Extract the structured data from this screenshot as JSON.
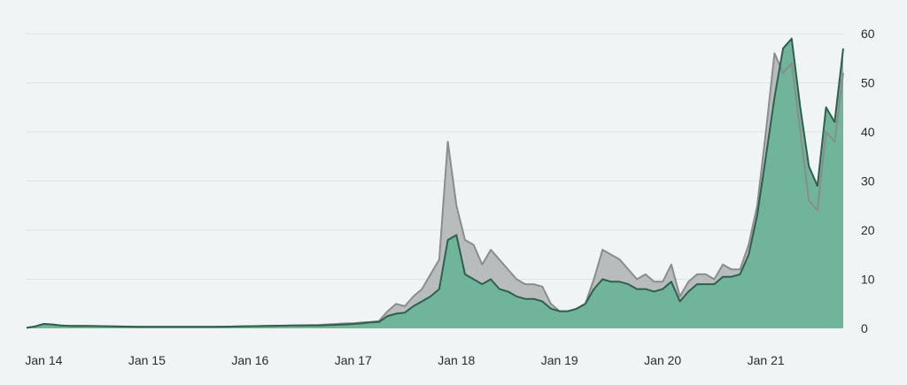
{
  "chart_data": {
    "type": "area",
    "title": "",
    "xlabel": "",
    "ylabel": "",
    "ylim": [
      0,
      60
    ],
    "y_ticks": [
      "0",
      "10",
      "20",
      "30",
      "40",
      "50",
      "60"
    ],
    "x_ticks": [
      "Jan 14",
      "Jan 15",
      "Jan 16",
      "Jan 17",
      "Jan 18",
      "Jan 19",
      "Jan 20",
      "Jan 21"
    ],
    "x_range": [
      "2013-11",
      "2021-10"
    ],
    "grid": true,
    "legend": "none",
    "colors": {
      "background": "#f1f4f5",
      "grid": "#dde3e6",
      "area_green": "#6fb49b",
      "line_green": "#2f5f4d",
      "area_gray": "#b9bcbd",
      "line_gray": "#8a8c8d"
    },
    "series": [
      {
        "x": [
          "2013-11",
          "2013-12",
          "2014-01",
          "2014-02",
          "2014-03",
          "2014-04",
          "2014-06",
          "2014-09",
          "2014-12",
          "2015-03",
          "2015-06",
          "2015-09",
          "2015-12",
          "2016-03",
          "2016-06",
          "2016-09",
          "2016-12",
          "2017-01",
          "2017-02",
          "2017-03",
          "2017-04",
          "2017-05",
          "2017-06",
          "2017-07",
          "2017-08",
          "2017-09",
          "2017-10",
          "2017-11",
          "2017-12",
          "2018-01",
          "2018-02",
          "2018-03",
          "2018-04",
          "2018-05",
          "2018-06",
          "2018-07",
          "2018-08",
          "2018-09",
          "2018-10",
          "2018-11",
          "2018-12",
          "2019-01",
          "2019-02",
          "2019-03",
          "2019-04",
          "2019-05",
          "2019-06",
          "2019-07",
          "2019-08",
          "2019-09",
          "2019-10",
          "2019-11",
          "2019-12",
          "2020-01",
          "2020-02",
          "2020-03",
          "2020-04",
          "2020-05",
          "2020-06",
          "2020-07",
          "2020-08",
          "2020-09",
          "2020-10",
          "2020-11",
          "2020-12",
          "2021-01",
          "2021-02",
          "2021-03",
          "2021-04",
          "2021-05",
          "2021-06",
          "2021-07",
          "2021-08",
          "2021-09",
          "2021-10"
        ],
        "values": [
          0.1,
          0.4,
          0.9,
          0.8,
          0.6,
          0.5,
          0.5,
          0.4,
          0.3,
          0.3,
          0.3,
          0.3,
          0.4,
          0.5,
          0.6,
          0.6,
          0.8,
          0.9,
          1.0,
          1.2,
          1.3,
          2.5,
          3.0,
          3.2,
          4.5,
          5.5,
          6.5,
          8.0,
          18.0,
          19.0,
          11.0,
          10.0,
          9.0,
          10.0,
          8.0,
          7.5,
          6.5,
          6.0,
          6.0,
          5.5,
          4.0,
          3.5,
          3.5,
          4.0,
          5.0,
          8.0,
          10.0,
          9.5,
          9.5,
          9.0,
          8.0,
          8.0,
          7.5,
          8.0,
          9.5,
          5.5,
          7.5,
          9.0,
          9.0,
          9.0,
          10.5,
          10.5,
          11.0,
          15.0,
          23.0,
          35.0,
          47.0,
          57.0,
          59.0,
          45.0,
          33.0,
          29.0,
          45.0,
          42.0,
          57.0
        ]
      },
      {
        "x": [
          "2013-11",
          "2013-12",
          "2014-01",
          "2014-02",
          "2014-03",
          "2014-04",
          "2014-06",
          "2014-09",
          "2014-12",
          "2015-03",
          "2015-06",
          "2015-09",
          "2015-12",
          "2016-03",
          "2016-06",
          "2016-09",
          "2016-12",
          "2017-01",
          "2017-02",
          "2017-03",
          "2017-04",
          "2017-05",
          "2017-06",
          "2017-07",
          "2017-08",
          "2017-09",
          "2017-10",
          "2017-11",
          "2017-12",
          "2018-01",
          "2018-02",
          "2018-03",
          "2018-04",
          "2018-05",
          "2018-06",
          "2018-07",
          "2018-08",
          "2018-09",
          "2018-10",
          "2018-11",
          "2018-12",
          "2019-01",
          "2019-02",
          "2019-03",
          "2019-04",
          "2019-05",
          "2019-06",
          "2019-07",
          "2019-08",
          "2019-09",
          "2019-10",
          "2019-11",
          "2019-12",
          "2020-01",
          "2020-02",
          "2020-03",
          "2020-04",
          "2020-05",
          "2020-06",
          "2020-07",
          "2020-08",
          "2020-09",
          "2020-10",
          "2020-11",
          "2020-12",
          "2021-01",
          "2021-02",
          "2021-03",
          "2021-04",
          "2021-05",
          "2021-06",
          "2021-07",
          "2021-08",
          "2021-09",
          "2021-10"
        ],
        "values": [
          0.1,
          0.4,
          0.9,
          0.8,
          0.6,
          0.5,
          0.5,
          0.4,
          0.3,
          0.3,
          0.3,
          0.3,
          0.4,
          0.5,
          0.6,
          0.7,
          1.0,
          1.0,
          1.2,
          1.3,
          1.5,
          3.5,
          5.0,
          4.5,
          6.5,
          8.0,
          11.0,
          14.0,
          38.0,
          25.0,
          18.0,
          17.0,
          13.0,
          16.0,
          14.0,
          12.0,
          10.0,
          9.0,
          9.0,
          8.5,
          5.0,
          3.5,
          3.5,
          4.0,
          5.0,
          10.0,
          16.0,
          15.0,
          14.0,
          12.0,
          10.0,
          11.0,
          9.5,
          9.5,
          13.0,
          6.5,
          9.5,
          11.0,
          11.0,
          10.0,
          13.0,
          12.0,
          12.0,
          17.0,
          25.0,
          40.0,
          56.0,
          52.0,
          54.0,
          40.0,
          26.0,
          24.0,
          40.0,
          38.0,
          52.0
        ]
      }
    ]
  }
}
